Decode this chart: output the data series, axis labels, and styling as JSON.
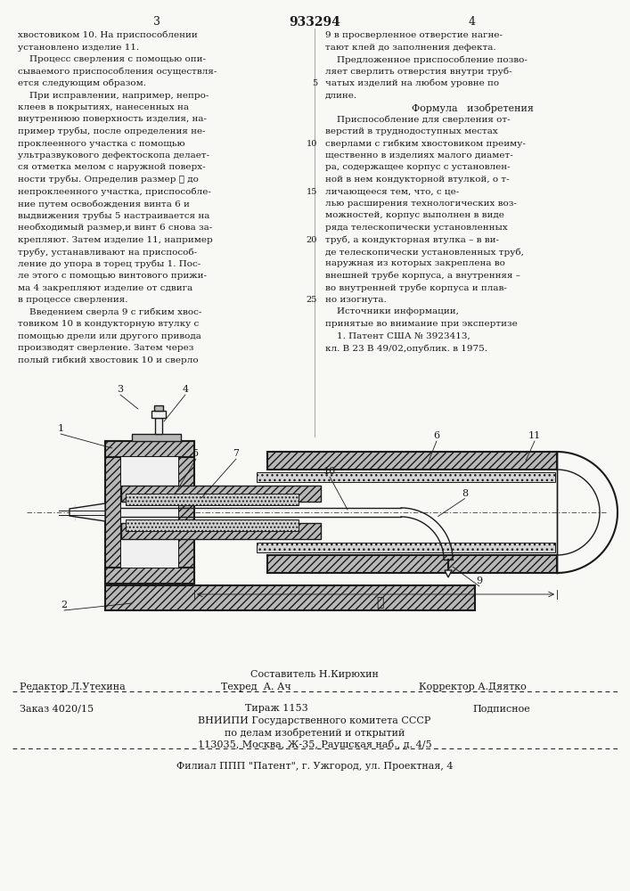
{
  "page_title": "933294",
  "col_left_num": "3",
  "col_right_num": "4",
  "bg_color": "#f8f8f5",
  "text_color": "#1a1a1a",
  "left_column_lines": [
    "хвостовиком 10. На приспособлении",
    "установлено изделие 11.",
    "    Процесс сверления с помощью опи-",
    "сываемого приспособления осуществля-",
    "ется следующим образом.",
    "    При исправлении, например, непро-",
    "клеев в покрытиях, нанесенных на",
    "внутреннюю поверхность изделия, на-",
    "пример трубы, после определения не-",
    "проклеенного участка с помощью",
    "ультразвукового дефектоскопа делает-",
    "ся отметка мелом с наружной поверх-",
    "ности трубы. Определив размер ℓ до",
    "непроклеенного участка, приспособле-",
    "ние путем освобождения винта 6 и",
    "выдвижения трубы 5 настраивается на",
    "необходимый размер,и винт 6 снова за-",
    "крепляют. Затем изделие 11, например",
    "трубу, устанавливают на приспособ-",
    "ление до упора в торец трубы 1. Пос-",
    "ле этого с помощью винтового прижи-",
    "ма 4 закрепляют изделие от сдвига",
    "в процессе сверления.",
    "    Введением сверла 9 с гибким хвос-",
    "товиком 10 в кондукторную втулку с",
    "помощью дрели или другого привода",
    "производят сверление. Затем через",
    "полый гибкий хвостовик 10 и сверло"
  ],
  "right_column_lines": [
    "9 в просверленное отверстие нагне-",
    "тают клей до заполнения дефекта.",
    "    Предложенное приспособление позво-",
    "ляет сверлить отверстия внутри труб-",
    "чатых изделий на любом уровне по",
    "длине.",
    "Формула   изобретения",
    "    Приспособление для сверления от-",
    "верстий в труднодоступных местах",
    "сверлами с гибким хвостовиком преиму-",
    "щественно в изделиях малого диамет-",
    "ра, содержащее корпус с установлен-",
    "ной в нем кондукторной втулкой, о т-",
    "личающееся тем, что, с це-",
    "лью расширения технологических воз-",
    "можностей, корпус выполнен в виде",
    "ряда телескопически установленных",
    "труб, а кондукторная втулка – в ви-",
    "де телескопически установленных труб,",
    "наружная из которых закреплена во",
    "внешней трубе корпуса, а внутренняя –",
    "во внутренней трубе корпуса и плав-",
    "но изогнута.",
    "    Источники информации,",
    "принятые во внимание при экспертизе",
    "    1. Патент США № 3923413,",
    "кл. В 23 В 49/02,опублик. в 1975."
  ],
  "right_line_num_indices": {
    "5": 4,
    "10": 9,
    "15": 13,
    "20": 17,
    "25": 22
  },
  "formula_index": 6,
  "footer_compiler": "Составитель Н.Кирюхин",
  "footer_editor": "Редактор Л.Утехина",
  "footer_techred": "Техред  А. Ач",
  "footer_corrector": "Корректор А.Дяятко",
  "footer_order": "Заказ 4020/15",
  "footer_edition": "Тираж 1153",
  "footer_subscription": "Подписное",
  "footer_vnipi": "ВНИИПИ Государственного комитета СССР",
  "footer_vnipi2": "по делам изобретений и открытий",
  "footer_address": "113035, Москва, Ж-35, Раушская наб., д. 4/5",
  "footer_branch": "Филиал ППП \"Патент\", г. Ужгород, ул. Проектная, 4"
}
